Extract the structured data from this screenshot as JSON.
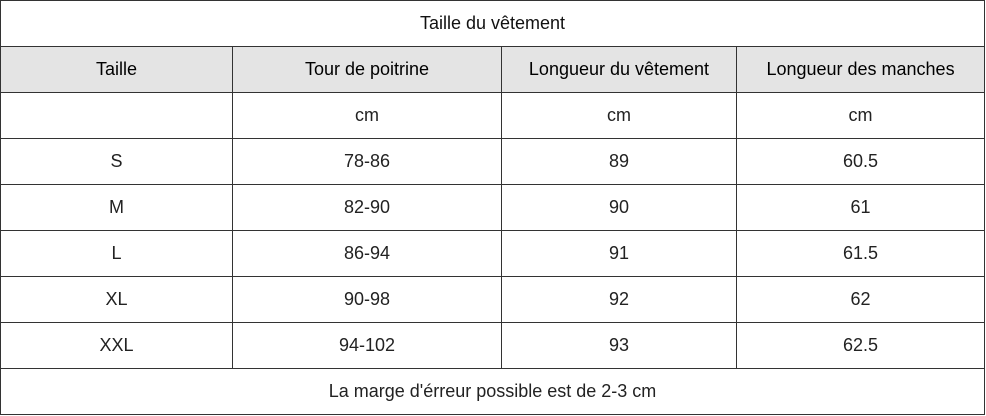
{
  "title": "Taille du vêtement",
  "headers": [
    "Taille",
    "Tour de poitrine",
    "Longueur du vêtement",
    "Longueur des manches"
  ],
  "units": [
    "",
    "cm",
    "cm",
    "cm"
  ],
  "rows": [
    [
      "S",
      "78-86",
      "89",
      "60.5"
    ],
    [
      "M",
      "82-90",
      "90",
      "61"
    ],
    [
      "L",
      "86-94",
      "91",
      "61.5"
    ],
    [
      "XL",
      "90-98",
      "92",
      "62"
    ],
    [
      "XXL",
      "94-102",
      "93",
      "62.5"
    ]
  ],
  "footer": "La marge d'érreur possible est de 2-3 cm"
}
